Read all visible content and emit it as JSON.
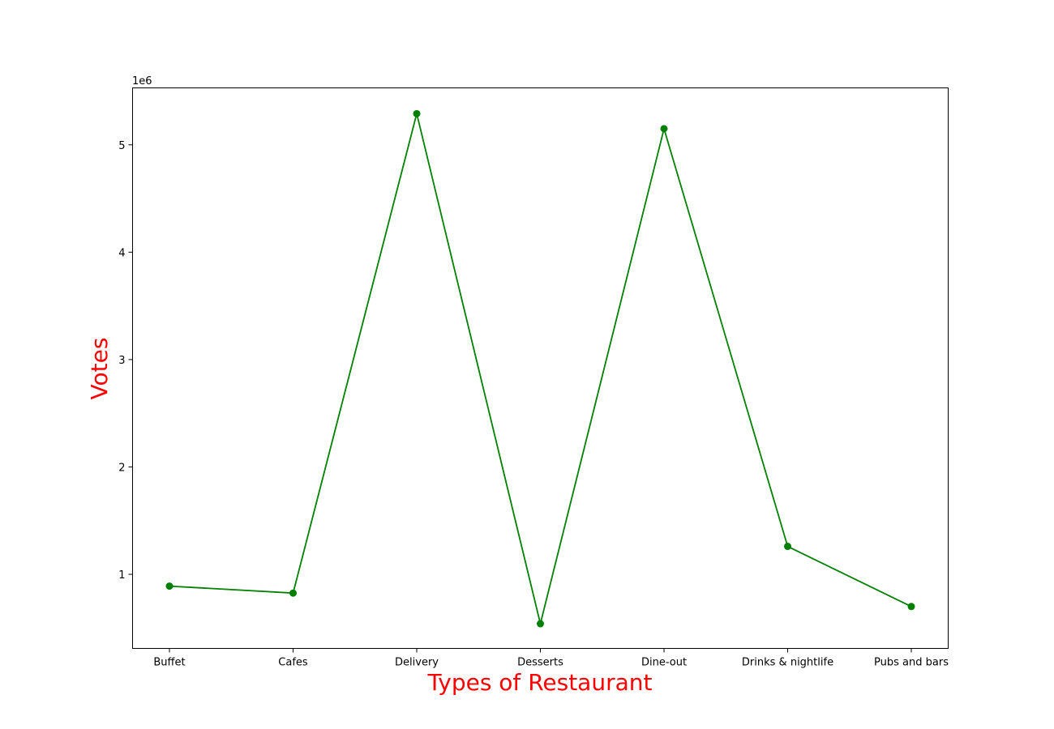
{
  "chart_data": {
    "type": "line",
    "title": "",
    "xlabel": "Types of Restaurant",
    "ylabel": "Votes",
    "y_offset_label": "1e6",
    "categories": [
      "Buffet",
      "Cafes",
      "Delivery",
      "Desserts",
      "Dine-out",
      "Drinks & nightlife",
      "Pubs and bars"
    ],
    "series": [
      {
        "values": [
          890000,
          825000,
          5290000,
          540000,
          5150000,
          1260000,
          700000
        ]
      }
    ],
    "ylim": [
      310000,
      5530000
    ],
    "yticks": [
      {
        "value": 1000000,
        "label": "1"
      },
      {
        "value": 2000000,
        "label": "2"
      },
      {
        "value": 3000000,
        "label": "3"
      },
      {
        "value": 4000000,
        "label": "4"
      },
      {
        "value": 5000000,
        "label": "5"
      }
    ],
    "grid": false,
    "colors": {
      "line": "#008000",
      "marker": "#008000",
      "axis_title": "#ff0000",
      "axes": "#000000"
    }
  }
}
